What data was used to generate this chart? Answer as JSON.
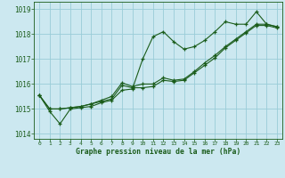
{
  "title": "Graphe pression niveau de la mer (hPa)",
  "background_color": "#cce8f0",
  "grid_color": "#99ccd8",
  "line_color": "#1a5c1a",
  "xlim": [
    -0.5,
    23.5
  ],
  "ylim": [
    1013.8,
    1019.3
  ],
  "yticks": [
    1014,
    1015,
    1016,
    1017,
    1018,
    1019
  ],
  "xticks": [
    0,
    1,
    2,
    3,
    4,
    5,
    6,
    7,
    8,
    9,
    10,
    11,
    12,
    13,
    14,
    15,
    16,
    17,
    18,
    19,
    20,
    21,
    22,
    23
  ],
  "series": [
    [
      1015.55,
      1014.9,
      1014.4,
      1015.0,
      1015.05,
      1015.1,
      1015.25,
      1015.35,
      1015.75,
      1015.8,
      1017.0,
      1017.9,
      1018.1,
      1017.7,
      1017.4,
      1017.5,
      1017.75,
      1018.1,
      1018.5,
      1018.4,
      1018.4,
      1018.9,
      1018.4,
      1018.3
    ],
    [
      1015.55,
      1015.0,
      1015.0,
      1015.05,
      1015.1,
      1015.2,
      1015.3,
      1015.4,
      1015.95,
      1015.85,
      1015.85,
      1015.9,
      1016.15,
      1016.1,
      1016.15,
      1016.45,
      1016.75,
      1017.05,
      1017.45,
      1017.75,
      1018.05,
      1018.35,
      1018.35,
      1018.25
    ],
    [
      1015.55,
      1015.0,
      1015.0,
      1015.05,
      1015.1,
      1015.2,
      1015.35,
      1015.5,
      1016.05,
      1015.9,
      1016.0,
      1016.0,
      1016.25,
      1016.15,
      1016.2,
      1016.5,
      1016.85,
      1017.15,
      1017.5,
      1017.8,
      1018.1,
      1018.4,
      1018.4,
      1018.3
    ]
  ]
}
